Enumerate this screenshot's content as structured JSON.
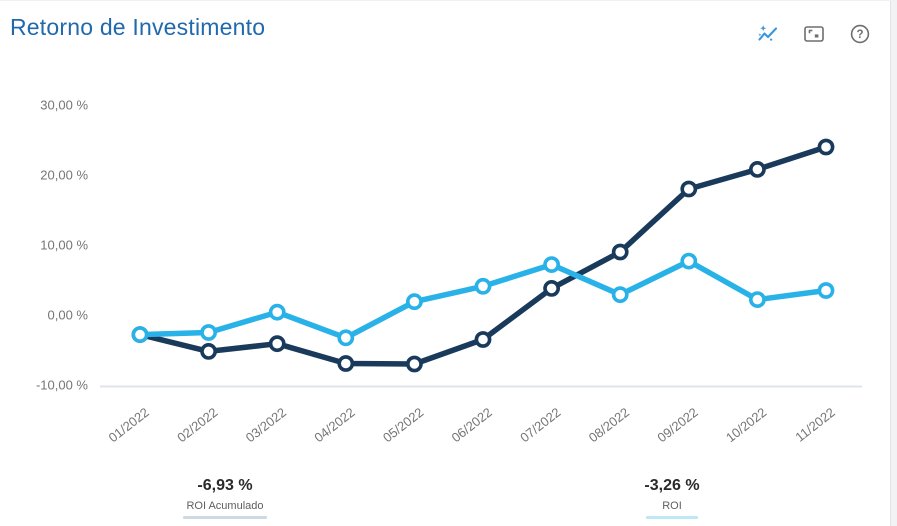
{
  "header": {
    "title": "Retorno de Investimento",
    "icons": {
      "insights": "sparkline-with-sparkles",
      "focus_mode": "frame-with-corner-marks",
      "help": "question-mark-in-circle"
    }
  },
  "colors": {
    "title": "#2169ae",
    "roi_acumulado": "#1a3a5c",
    "roi": "#28b2e8",
    "axis_text": "#757575",
    "axis_line": "#dfe3ea",
    "insights_icon": "#3a96dd",
    "toolbar_icon": "#6e6e6e",
    "kpi_value": "#2b2a29",
    "kpi_label": "#5f5e5c"
  },
  "chart_data": {
    "type": "line",
    "title": "Retorno de Investimento",
    "categories": [
      "01/2022",
      "02/2022",
      "03/2022",
      "04/2022",
      "05/2022",
      "06/2022",
      "07/2022",
      "08/2022",
      "09/2022",
      "10/2022",
      "11/2022"
    ],
    "series": [
      {
        "name": "ROI Acumulado",
        "color": "#1a3a5c",
        "values": [
          -2.8,
          -5.2,
          -4.1,
          -6.93,
          -7.0,
          -3.5,
          3.8,
          9.0,
          18.0,
          20.8,
          24.0
        ]
      },
      {
        "name": "ROI",
        "color": "#28b2e8",
        "values": [
          -2.8,
          -2.5,
          0.4,
          -3.26,
          1.9,
          4.1,
          7.2,
          2.9,
          7.7,
          2.2,
          3.5
        ]
      }
    ],
    "xlabel": "",
    "ylabel": "",
    "ylim": [
      -10,
      30
    ],
    "yticks": [
      {
        "value": 30,
        "label": "30,00 %"
      },
      {
        "value": 20,
        "label": "20,00 %"
      },
      {
        "value": 10,
        "label": "10,00 %"
      },
      {
        "value": 0,
        "label": "0,00 %"
      },
      {
        "value": -10,
        "label": "-10,00 %"
      }
    ],
    "grid": "baseline-only",
    "legend_position": "bottom-kpi-cards",
    "marker_style": "white-filled-circles",
    "x_label_rotation_deg": -38
  },
  "kpis": [
    {
      "value": "-6,93 %",
      "label": "ROI Acumulado",
      "underline_color": "#cfd9e3"
    },
    {
      "value": "-3,26 %",
      "label": "ROI",
      "underline_color": "#bfe8f6"
    }
  ]
}
